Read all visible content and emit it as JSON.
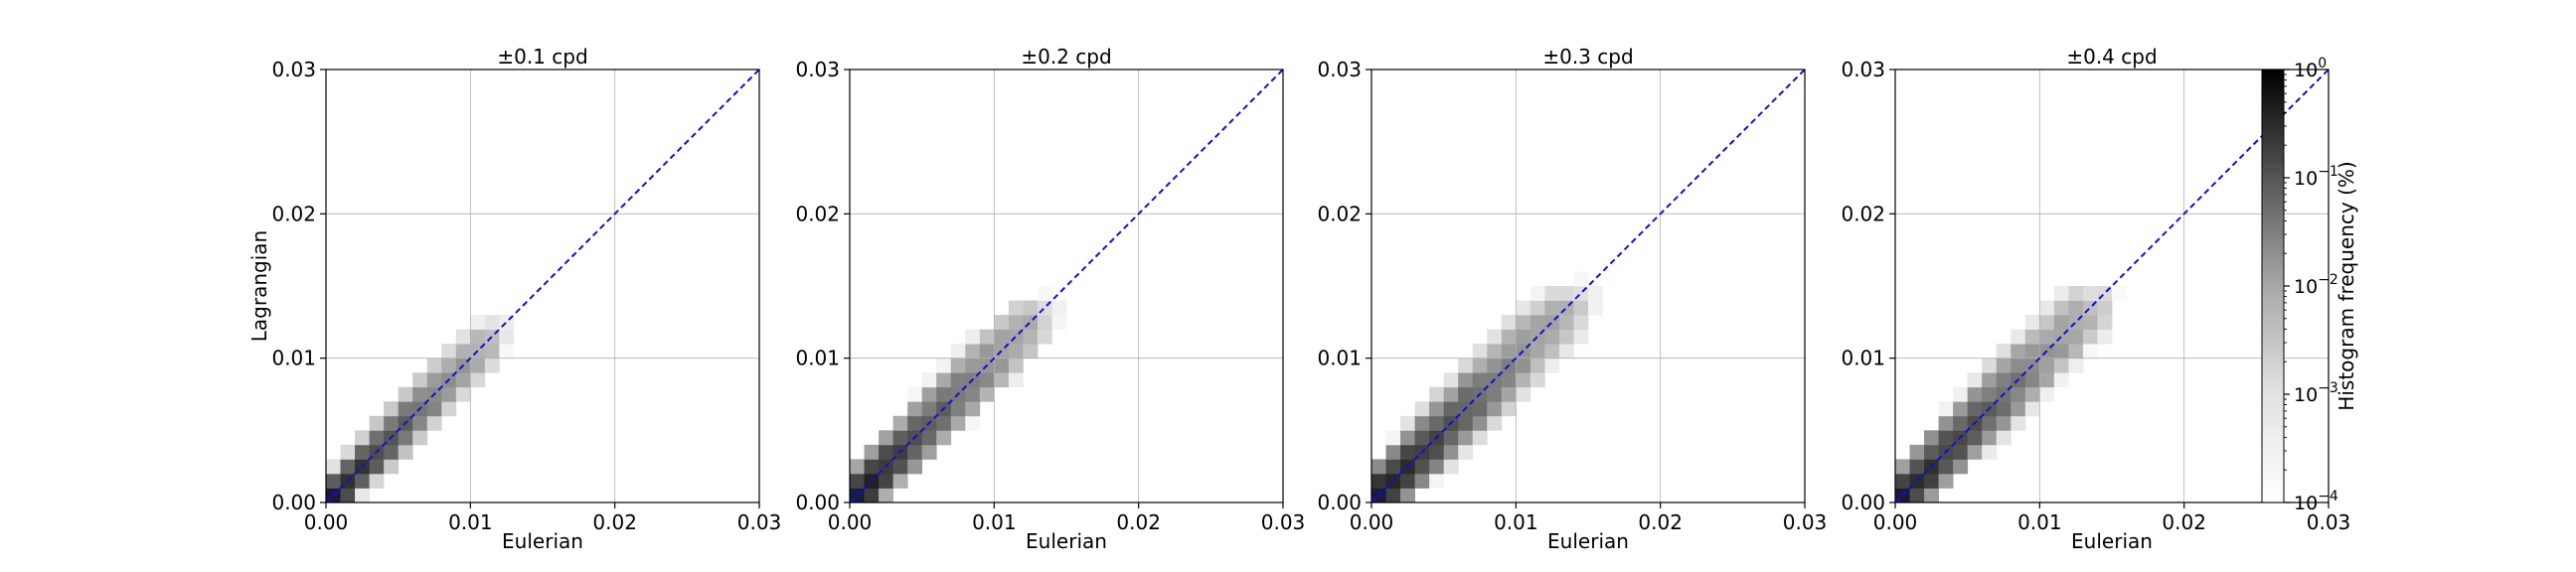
{
  "chart_data": [
    {
      "type": "heatmap",
      "title": "±0.1 cpd",
      "xlabel": "Eulerian",
      "ylabel": "Lagrangian",
      "xlim": [
        0,
        0.03
      ],
      "ylim": [
        0,
        0.03
      ],
      "xticks": [
        "0.00",
        "0.01",
        "0.02",
        "0.03"
      ],
      "yticks": [
        "0.00",
        "0.01",
        "0.02",
        "0.03"
      ],
      "grid": true,
      "reference_line": {
        "from": [
          0,
          0
        ],
        "to": [
          0.03,
          0.03
        ],
        "style": "dashed",
        "color": "#1010d0"
      },
      "spread": 0.17,
      "extent": 0.6
    },
    {
      "type": "heatmap",
      "title": "±0.2 cpd",
      "xlabel": "Eulerian",
      "ylabel": "",
      "xlim": [
        0,
        0.03
      ],
      "ylim": [
        0,
        0.03
      ],
      "xticks": [
        "0.00",
        "0.01",
        "0.02",
        "0.03"
      ],
      "yticks": [
        "0.00",
        "0.01",
        "0.02",
        "0.03"
      ],
      "grid": true,
      "reference_line": {
        "from": [
          0,
          0
        ],
        "to": [
          0.03,
          0.03
        ],
        "style": "dashed",
        "color": "#1010d0"
      },
      "spread": 0.2,
      "extent": 0.68
    },
    {
      "type": "heatmap",
      "title": "±0.3 cpd",
      "xlabel": "Eulerian",
      "ylabel": "",
      "xlim": [
        0,
        0.03
      ],
      "ylim": [
        0,
        0.03
      ],
      "xticks": [
        "0.00",
        "0.01",
        "0.02",
        "0.03"
      ],
      "yticks": [
        "0.00",
        "0.01",
        "0.02",
        "0.03"
      ],
      "grid": true,
      "reference_line": {
        "from": [
          0,
          0
        ],
        "to": [
          0.03,
          0.03
        ],
        "style": "dashed",
        "color": "#1010d0"
      },
      "spread": 0.22,
      "extent": 0.72
    },
    {
      "type": "heatmap",
      "title": "±0.4 cpd",
      "xlabel": "Eulerian",
      "ylabel": "",
      "xlim": [
        0,
        0.03
      ],
      "ylim": [
        0,
        0.03
      ],
      "xticks": [
        "0.00",
        "0.01",
        "0.02",
        "0.03"
      ],
      "yticks": [
        "0.00",
        "0.01",
        "0.02",
        "0.03"
      ],
      "grid": true,
      "reference_line": {
        "from": [
          0,
          0
        ],
        "to": [
          0.03,
          0.03
        ],
        "style": "dashed",
        "color": "#1010d0"
      },
      "spread": 0.21,
      "extent": 0.72
    }
  ],
  "colorbar": {
    "label": "Histogram frequency (%)",
    "scale": "log",
    "range": [
      0.0001,
      1
    ],
    "ticks": [
      {
        "base": "10",
        "exp": "0",
        "value": 1
      },
      {
        "base": "10",
        "exp": "−1",
        "value": 0.1
      },
      {
        "base": "10",
        "exp": "−2",
        "value": 0.01
      },
      {
        "base": "10",
        "exp": "−3",
        "value": 0.001
      },
      {
        "base": "10",
        "exp": "−4",
        "value": 0.0001
      }
    ],
    "colormap": "greys",
    "peak_color": "#1a1a3e"
  }
}
